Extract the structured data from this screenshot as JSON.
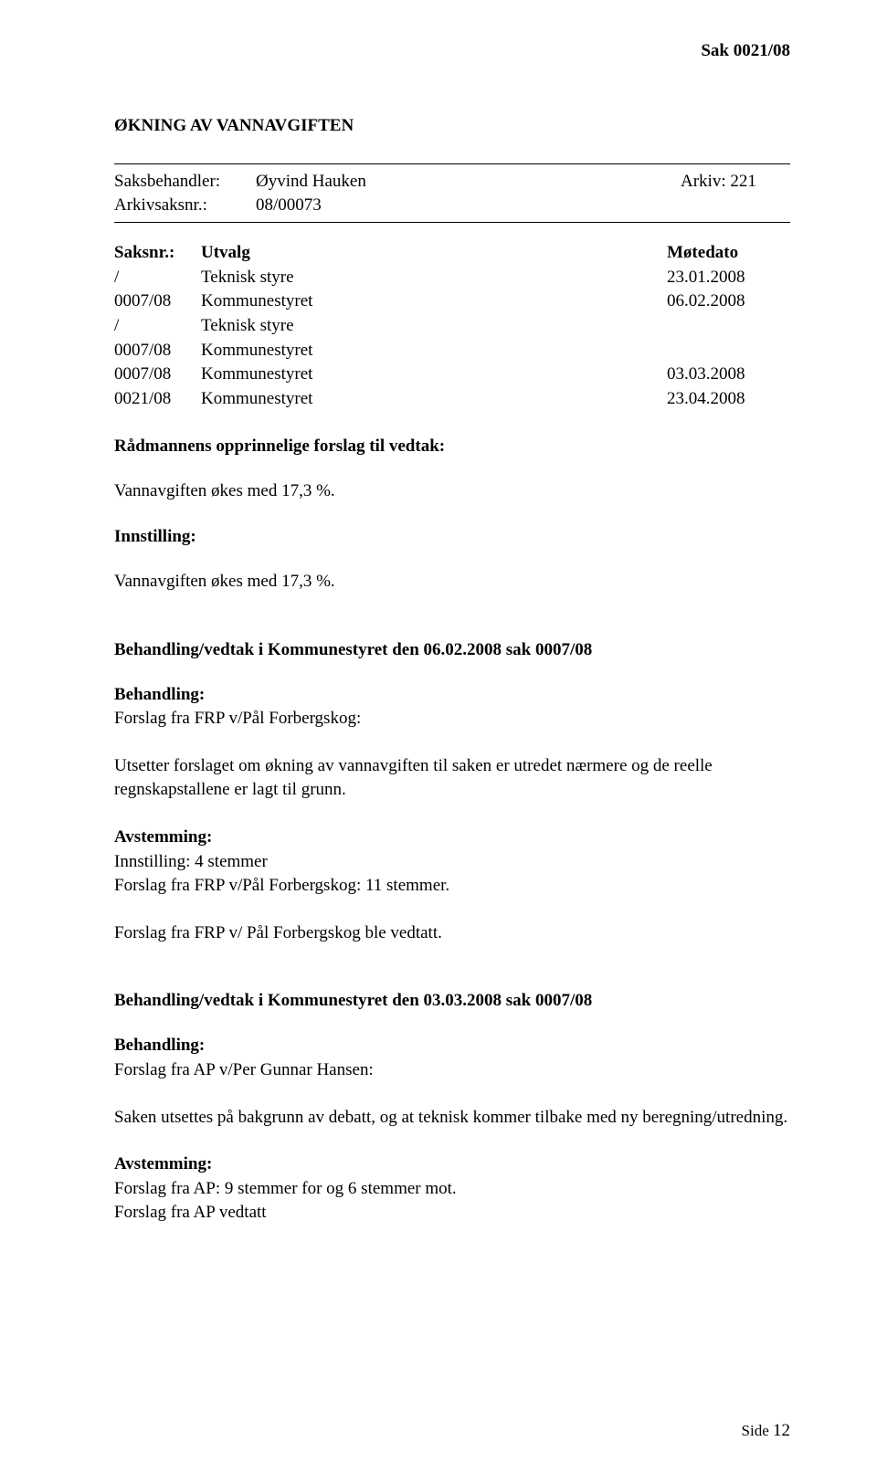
{
  "header": {
    "case_ref": "Sak  0021/08"
  },
  "title": "ØKNING AV VANNAVGIFTEN",
  "meta": {
    "saksbehandler_label": "Saksbehandler:",
    "saksbehandler_value": "Øyvind Hauken",
    "arkiv_label": "Arkiv: 221",
    "arkivsaksnr_label": "Arkivsaksnr.:",
    "arkivsaksnr_value": "08/00073"
  },
  "committee": {
    "col_saksnr": "Saksnr.:",
    "col_utvalg": "Utvalg",
    "col_dato": "Møtedato",
    "rows": [
      {
        "saksnr": "/",
        "utvalg": "Teknisk styre",
        "dato": "23.01.2008"
      },
      {
        "saksnr": "0007/08",
        "utvalg": "Kommunestyret",
        "dato": "06.02.2008"
      },
      {
        "saksnr": "/",
        "utvalg": "Teknisk styre",
        "dato": ""
      },
      {
        "saksnr": "0007/08",
        "utvalg": "Kommunestyret",
        "dato": ""
      },
      {
        "saksnr": "0007/08",
        "utvalg": "Kommunestyret",
        "dato": "03.03.2008"
      },
      {
        "saksnr": "0021/08",
        "utvalg": "Kommunestyret",
        "dato": "23.04.2008"
      }
    ]
  },
  "sections": {
    "radmannens_heading": "Rådmannens opprinnelige forslag til vedtak:",
    "radmannens_text": "Vannavgiften økes med 17,3 %.",
    "innstilling_heading": "Innstilling:",
    "innstilling_text": "Vannavgiften økes med 17,3 %.",
    "behandling1_heading": "Behandling/vedtak i Kommunestyret den 06.02.2008 sak 0007/08",
    "behandling_label": "Behandling:",
    "forslag_frp": "Forslag fra FRP v/Pål Forbergskog:",
    "forslag_frp_text": "Utsetter forslaget om økning av vannavgiften til saken er utredet nærmere og de reelle regnskapstallene er lagt til grunn.",
    "avstemming_label": "Avstemming:",
    "avstemming1_line1": "Innstilling: 4 stemmer",
    "avstemming1_line2": "Forslag fra FRP v/Pål Forbergskog: 11 stemmer.",
    "avstemming1_result": "Forslag fra FRP v/ Pål Forbergskog ble vedtatt.",
    "behandling2_heading": "Behandling/vedtak i Kommunestyret den 03.03.2008 sak 0007/08",
    "forslag_ap": "Forslag fra AP v/Per Gunnar Hansen:",
    "forslag_ap_text": "Saken utsettes på bakgrunn av debatt, og at teknisk kommer tilbake med ny beregning/utredning.",
    "avstemming2_line1": "Forslag fra AP: 9 stemmer for og 6 stemmer mot.",
    "avstemming2_line2": "Forslag fra AP vedtatt"
  },
  "footer": {
    "side_label": "Side ",
    "page_num": "12"
  }
}
